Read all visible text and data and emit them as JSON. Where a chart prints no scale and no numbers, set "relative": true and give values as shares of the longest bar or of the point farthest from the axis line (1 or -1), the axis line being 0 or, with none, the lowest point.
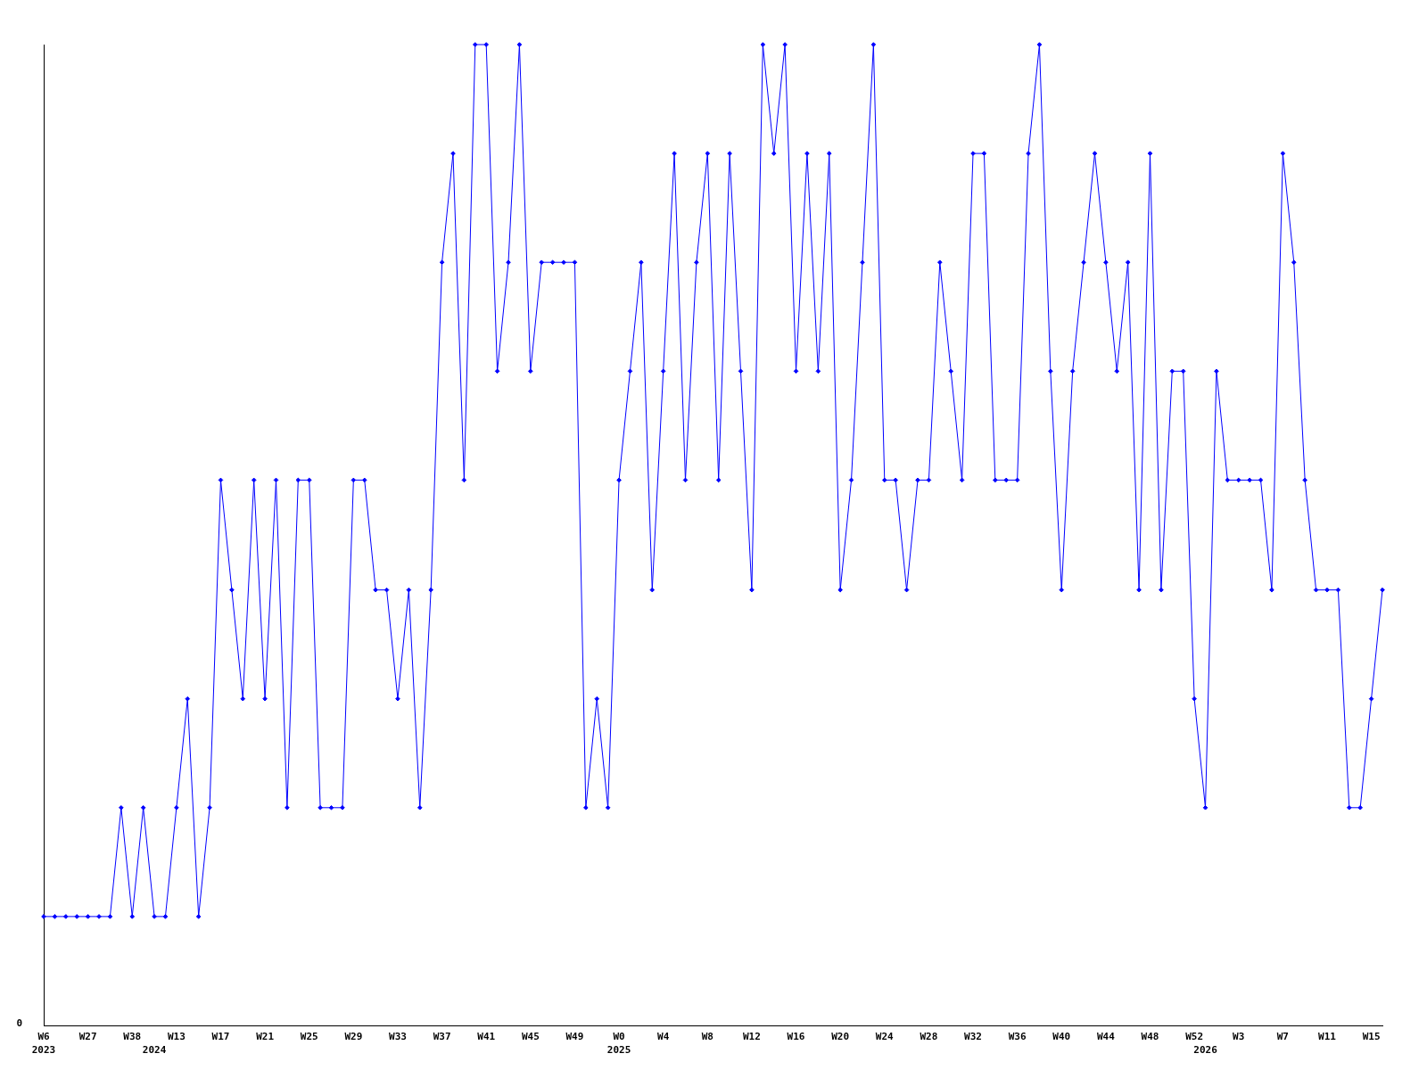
{
  "chart_data": {
    "type": "line",
    "relative": true,
    "categories": [
      "W6\n2023",
      null,
      null,
      null,
      "W27",
      null,
      null,
      null,
      "W38",
      null,
      "\n2024",
      null,
      "W13",
      null,
      null,
      null,
      "W17",
      null,
      null,
      null,
      "W21",
      null,
      null,
      null,
      "W25",
      null,
      null,
      null,
      "W29",
      null,
      null,
      null,
      "W33",
      null,
      null,
      null,
      "W37",
      null,
      null,
      null,
      "W41",
      null,
      null,
      null,
      "W45",
      null,
      null,
      null,
      "W49",
      null,
      null,
      null,
      "W0\n2025",
      null,
      null,
      null,
      "W4",
      null,
      null,
      null,
      "W8",
      null,
      null,
      null,
      "W12",
      null,
      null,
      null,
      "W16",
      null,
      null,
      null,
      "W20",
      null,
      null,
      null,
      "W24",
      null,
      null,
      null,
      "W28",
      null,
      null,
      null,
      "W32",
      null,
      null,
      null,
      "W36",
      null,
      null,
      null,
      "W40",
      null,
      null,
      null,
      "W44",
      null,
      null,
      null,
      "W48",
      null,
      null,
      null,
      "W52",
      "\n2026",
      null,
      null,
      "W3",
      null,
      null,
      null,
      "W7",
      null,
      null,
      null,
      "W11",
      null,
      null,
      null,
      "W15",
      null
    ],
    "values": [
      0.111,
      0.111,
      0.111,
      0.111,
      0.111,
      0.111,
      0.111,
      0.222,
      0.111,
      0.222,
      0.111,
      0.111,
      0.222,
      0.333,
      0.111,
      0.222,
      0.556,
      0.444,
      0.333,
      0.556,
      0.333,
      0.556,
      0.222,
      0.556,
      0.556,
      0.222,
      0.222,
      0.222,
      0.556,
      0.556,
      0.444,
      0.444,
      0.333,
      0.444,
      0.222,
      0.444,
      0.778,
      0.889,
      0.556,
      1,
      1,
      0.667,
      0.778,
      1,
      0.667,
      0.778,
      0.778,
      0.778,
      0.778,
      0.222,
      0.333,
      0.222,
      0.556,
      0.667,
      0.778,
      0.444,
      0.667,
      0.889,
      0.556,
      0.778,
      0.889,
      0.556,
      0.889,
      0.667,
      0.444,
      1,
      0.889,
      1,
      0.667,
      0.889,
      0.667,
      0.889,
      0.444,
      0.556,
      0.778,
      1,
      0.556,
      0.556,
      0.444,
      0.556,
      0.556,
      0.778,
      0.667,
      0.556,
      0.889,
      0.889,
      0.556,
      0.556,
      0.556,
      0.889,
      1,
      0.667,
      0.444,
      0.667,
      0.778,
      0.889,
      0.778,
      0.667,
      0.778,
      0.444,
      0.889,
      0.444,
      0.667,
      0.667,
      0.333,
      0.222,
      0.667,
      0.556,
      0.556,
      0.556,
      0.556,
      0.444,
      0.889,
      0.778,
      0.556,
      0.444,
      0.444,
      0.444,
      0.222,
      0.222,
      0.333,
      0.444
    ],
    "color": "#0000ff",
    "marker": "diamond",
    "line_style": "solid",
    "annotations": [
      "0"
    ]
  }
}
